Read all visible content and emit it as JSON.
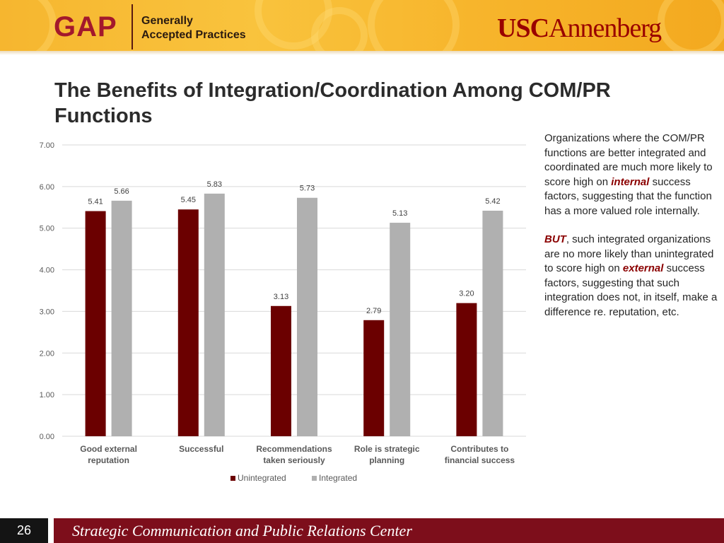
{
  "header": {
    "gap_logo": "GAP",
    "gap_line1": "Generally",
    "gap_line2": "Accepted Practices",
    "usc_part1": "USC",
    "usc_part2": "Annenberg"
  },
  "slide": {
    "title": "The Benefits of Integration/Coordination Among COM/PR Functions",
    "page_number": "26"
  },
  "side_text": {
    "p1_before": "Organizations where the COM/PR functions are better integrated and coordinated are much more likely to score high on ",
    "p1_emph": "internal",
    "p1_after": " success factors, suggesting that the function has a more valued role internally.",
    "p2_emph1": "BUT",
    "p2_mid": ", such integrated organizations are no more likely than unintegrated to score high on ",
    "p2_emph2": "external",
    "p2_after": " success factors, suggesting that such integration does not, in itself, make a difference re. reputation, etc."
  },
  "footer": {
    "text": "Strategic Communication and Public Relations Center"
  },
  "colors": {
    "unintegrated": "#6b0000",
    "integrated": "#b0b0b0",
    "gridline": "#d9d9d9",
    "footer_bg": "#7d0e1b"
  },
  "chart_data": {
    "type": "bar",
    "categories": [
      [
        "Good external",
        "reputation"
      ],
      [
        "Successful"
      ],
      [
        "Recommendations",
        "taken seriously"
      ],
      [
        "Role is strategic",
        "planning"
      ],
      [
        "Contributes to",
        "financial success"
      ]
    ],
    "series": [
      {
        "name": "Unintegrated",
        "values": [
          5.41,
          5.45,
          3.13,
          2.79,
          3.2
        ],
        "labels": [
          "5.41",
          "5.45",
          "3.13",
          "2.79",
          "3.20"
        ]
      },
      {
        "name": "Integrated",
        "values": [
          5.66,
          5.83,
          5.73,
          5.13,
          5.42
        ],
        "labels": [
          "5.66",
          "5.83",
          "5.73",
          "5.13",
          "5.42"
        ]
      }
    ],
    "ylim": [
      0,
      7
    ],
    "yticks": [
      "0.00",
      "1.00",
      "2.00",
      "3.00",
      "4.00",
      "5.00",
      "6.00",
      "7.00"
    ],
    "grid": true,
    "legend_position": "bottom"
  }
}
